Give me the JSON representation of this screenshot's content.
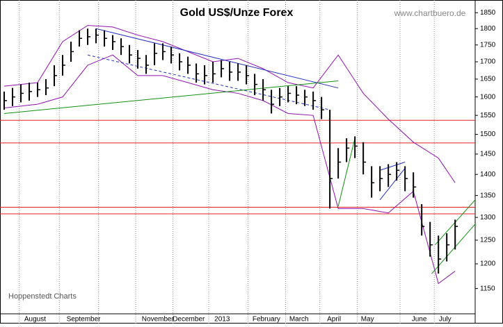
{
  "chart_data": {
    "type": "ohlc",
    "title": "Gold US$/Unze Forex",
    "source": "www.chartbuero.de",
    "footer": "Hoppenstedt Charts",
    "y_scale": "log",
    "ylim": [
      1101,
      1891
    ],
    "yticks": [
      1150,
      1200,
      1250,
      1300,
      1350,
      1400,
      1450,
      1500,
      1550,
      1600,
      1650,
      1700,
      1750,
      1800,
      1850
    ],
    "xlim": [
      -0.5,
      56.4
    ],
    "month_boundaries": [
      1.8,
      6.6,
      11.3,
      15.75,
      20.2,
      24.5,
      29.2,
      33.7,
      37.8,
      42.3,
      47.4,
      51.5
    ],
    "month_labels": [
      {
        "value": 3.7,
        "label": "August"
      },
      {
        "value": 9.5,
        "label": "September"
      },
      {
        "value": 18.4,
        "label": "November"
      },
      {
        "value": 22.1,
        "label": "December"
      },
      {
        "value": 26.1,
        "label": "2013"
      },
      {
        "value": 31.4,
        "label": "February"
      },
      {
        "value": 35.3,
        "label": "March"
      },
      {
        "value": 39.5,
        "label": "April"
      },
      {
        "value": 43.5,
        "label": "May"
      },
      {
        "value": 49.7,
        "label": "June"
      },
      {
        "value": 52.8,
        "label": "July"
      }
    ],
    "bar_color": "#000000",
    "close": [
      1590,
      1600,
      1610,
      1615,
      1620,
      1625,
      1660,
      1690,
      1730,
      1770,
      1775,
      1780,
      1770,
      1760,
      1745,
      1720,
      1710,
      1690,
      1725,
      1730,
      1720,
      1700,
      1690,
      1665,
      1660,
      1665,
      1680,
      1670,
      1670,
      1660,
      1635,
      1620,
      1580,
      1600,
      1610,
      1605,
      1600,
      1590,
      1565,
      1390,
      1430,
      1465,
      1470,
      1430,
      1380,
      1390,
      1400,
      1410,
      1390,
      1370,
      1280,
      1240,
      1210,
      1240,
      1280
    ],
    "high": [
      1615,
      1625,
      1635,
      1640,
      1640,
      1650,
      1690,
      1720,
      1760,
      1795,
      1800,
      1800,
      1795,
      1780,
      1770,
      1750,
      1735,
      1720,
      1755,
      1755,
      1745,
      1725,
      1715,
      1695,
      1690,
      1700,
      1705,
      1700,
      1695,
      1690,
      1665,
      1650,
      1620,
      1625,
      1630,
      1630,
      1620,
      1615,
      1600,
      1565,
      1465,
      1490,
      1495,
      1480,
      1420,
      1420,
      1425,
      1430,
      1420,
      1405,
      1330,
      1290,
      1260,
      1265,
      1295
    ],
    "low": [
      1565,
      1575,
      1585,
      1590,
      1600,
      1605,
      1630,
      1660,
      1700,
      1745,
      1750,
      1755,
      1745,
      1735,
      1720,
      1695,
      1680,
      1665,
      1690,
      1705,
      1695,
      1675,
      1665,
      1640,
      1635,
      1640,
      1655,
      1645,
      1645,
      1635,
      1605,
      1590,
      1555,
      1575,
      1585,
      1580,
      1575,
      1565,
      1540,
      1320,
      1390,
      1430,
      1440,
      1400,
      1345,
      1360,
      1370,
      1385,
      1360,
      1345,
      1260,
      1215,
      1180,
      1205,
      1230
    ],
    "bands": [
      {
        "name": "upper",
        "color": "#9010b0",
        "x": [
          0,
          4,
          7,
          10,
          13,
          16,
          19,
          22,
          25,
          28,
          31,
          34,
          37,
          40,
          43,
          46,
          49,
          52,
          54
        ],
        "y": [
          1630,
          1640,
          1760,
          1810,
          1805,
          1780,
          1760,
          1730,
          1700,
          1710,
          1680,
          1640,
          1625,
          1720,
          1610,
          1540,
          1480,
          1440,
          1380
        ]
      },
      {
        "name": "lower",
        "color": "#9010b0",
        "x": [
          0,
          4,
          7,
          10,
          13,
          16,
          19,
          22,
          25,
          28,
          31,
          34,
          37,
          40,
          43,
          46,
          49,
          52,
          54
        ],
        "y": [
          1570,
          1580,
          1600,
          1690,
          1720,
          1660,
          1660,
          1640,
          1620,
          1610,
          1590,
          1555,
          1550,
          1320,
          1320,
          1310,
          1360,
          1160,
          1185
        ]
      }
    ],
    "hlines": [
      {
        "value": 1537,
        "color": "#e02020"
      },
      {
        "value": 1478,
        "color": "#e02020"
      },
      {
        "value": 1323,
        "color": "#e02020"
      },
      {
        "value": 1308,
        "color": "#e02020"
      }
    ],
    "trendlines": [
      {
        "color": "#2030c0",
        "dashed": false,
        "x": [
          11,
          40
        ],
        "y": [
          1800,
          1625
        ]
      },
      {
        "color": "#2030c0",
        "dashed": true,
        "x": [
          10,
          39
        ],
        "y": [
          1720,
          1565
        ]
      },
      {
        "color": "#109010",
        "dashed": false,
        "x": [
          0,
          40
        ],
        "y": [
          1555,
          1645
        ]
      },
      {
        "color": "#109010",
        "dashed": false,
        "x": [
          40,
          42
        ],
        "y": [
          1325,
          1490
        ]
      },
      {
        "color": "#2030c0",
        "dashed": false,
        "x": [
          45,
          48
        ],
        "y": [
          1340,
          1415
        ]
      },
      {
        "color": "#2030c0",
        "dashed": false,
        "x": [
          45,
          48
        ],
        "y": [
          1410,
          1430
        ]
      },
      {
        "color": "#109010",
        "dashed": false,
        "x": [
          51.2,
          56.4
        ],
        "y": [
          1180,
          1285
        ]
      },
      {
        "color": "#109010",
        "dashed": false,
        "x": [
          51.6,
          56.4
        ],
        "y": [
          1240,
          1340
        ]
      }
    ]
  }
}
